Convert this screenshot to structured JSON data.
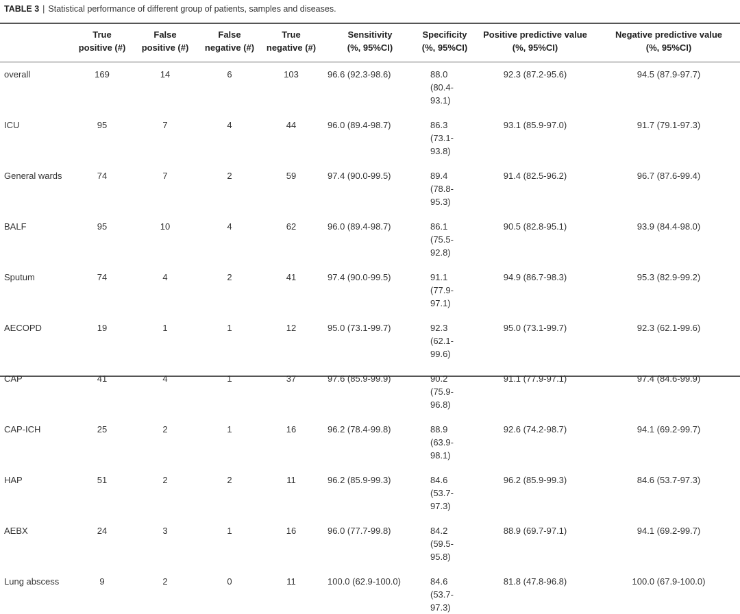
{
  "caption": {
    "label": "TABLE 3",
    "separator": "|",
    "text": "Statistical performance of different group of patients, samples and diseases."
  },
  "columns": [
    "",
    "True positive (#)",
    "False positive (#)",
    "False negative (#)",
    "True negative (#)",
    "Sensitivity (%, 95%CI)",
    "Specificity (%, 95%CI)",
    "Positive predictive value (%, 95%CI)",
    "Negative predictive value (%, 95%CI)"
  ],
  "header_lines": [
    [
      "",
      ""
    ],
    [
      "True",
      "positive (#)"
    ],
    [
      "False",
      "positive (#)"
    ],
    [
      "False",
      "negative (#)"
    ],
    [
      "True",
      "negative (#)"
    ],
    [
      "Sensitivity",
      "(%, 95%CI)"
    ],
    [
      "Specificity",
      "(%, 95%CI)"
    ],
    [
      "Positive predictive value",
      "(%, 95%CI)"
    ],
    [
      "Negative predictive value",
      "(%, 95%CI)"
    ]
  ],
  "rows": [
    [
      "overall",
      "169",
      "14",
      "6",
      "103",
      "96.6 (92.3-98.6)",
      "88.0 (80.4-93.1)",
      "92.3 (87.2-95.6)",
      "94.5 (87.9-97.7)"
    ],
    [
      "ICU",
      "95",
      "7",
      "4",
      "44",
      "96.0 (89.4-98.7)",
      "86.3 (73.1-93.8)",
      "93.1 (85.9-97.0)",
      "91.7 (79.1-97.3)"
    ],
    [
      "General wards",
      "74",
      "7",
      "2",
      "59",
      "97.4 (90.0-99.5)",
      "89.4 (78.8-95.3)",
      "91.4 (82.5-96.2)",
      "96.7 (87.6-99.4)"
    ],
    [
      "BALF",
      "95",
      "10",
      "4",
      "62",
      "96.0 (89.4-98.7)",
      "86.1 (75.5-92.8)",
      "90.5 (82.8-95.1)",
      "93.9 (84.4-98.0)"
    ],
    [
      "Sputum",
      "74",
      "4",
      "2",
      "41",
      "97.4 (90.0-99.5)",
      "91.1 (77.9-97.1)",
      "94.9 (86.7-98.3)",
      "95.3 (82.9-99.2)"
    ],
    [
      "AECOPD",
      "19",
      "1",
      "1",
      "12",
      "95.0 (73.1-99.7)",
      "92.3 (62.1-99.6)",
      "95.0 (73.1-99.7)",
      "92.3 (62.1-99.6)"
    ],
    [
      "CAP",
      "41",
      "4",
      "1",
      "37",
      "97.6 (85.9-99.9)",
      "90.2 (75.9-96.8)",
      "91.1 (77.9-97.1)",
      "97.4 (84.6-99.9)"
    ],
    [
      "CAP-ICH",
      "25",
      "2",
      "1",
      "16",
      "96.2 (78.4-99.8)",
      "88.9 (63.9-98.1)",
      "92.6 (74.2-98.7)",
      "94.1 (69.2-99.7)"
    ],
    [
      "HAP",
      "51",
      "2",
      "2",
      "11",
      "96.2 (85.9-99.3)",
      "84.6 (53.7-97.3)",
      "96.2 (85.9-99.3)",
      "84.6 (53.7-97.3)"
    ],
    [
      "AEBX",
      "24",
      "3",
      "1",
      "16",
      "96.0 (77.7-99.8)",
      "84.2 (59.5-95.8)",
      "88.9 (69.7-97.1)",
      "94.1 (69.2-99.7)"
    ],
    [
      "Lung abscess",
      "9",
      "2",
      "0",
      "11",
      "100.0 (62.9-100.0)",
      "84.6 (53.7-97.3)",
      "81.8 (47.8-96.8)",
      "100.0 (67.9-100.0)"
    ]
  ]
}
